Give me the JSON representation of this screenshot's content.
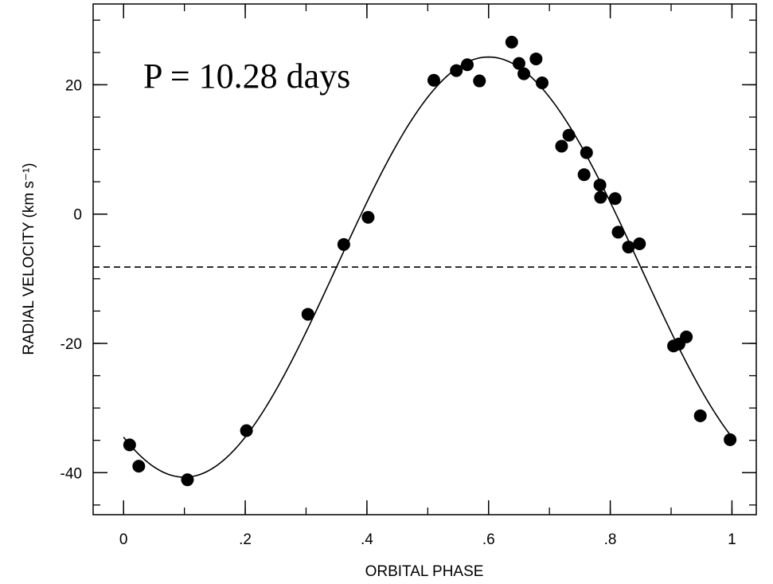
{
  "chart_data": {
    "type": "scatter",
    "xlabel": "ORBITAL PHASE",
    "ylabel": "RADIAL VELOCITY (km s⁻¹)",
    "annotation": "P = 10.28 days",
    "xlim": [
      -0.05,
      1.04
    ],
    "ylim": [
      -46.5,
      32.5
    ],
    "x_ticks": [
      0,
      0.2,
      0.4,
      0.6,
      0.8,
      1
    ],
    "x_tick_labels": [
      "0",
      ".2",
      ".4",
      ".6",
      ".8",
      "1"
    ],
    "y_ticks": [
      -40,
      -20,
      0,
      20
    ],
    "y_tick_labels": [
      "-40",
      "-20",
      "0",
      "20"
    ],
    "y_minor_step": 5,
    "x_minor_step": 0.1,
    "grid": false,
    "systemic_velocity": -8.2,
    "fit_curve": {
      "gamma": -8.2,
      "amplitude": 32.5,
      "phase_of_max": 0.6
    },
    "points": [
      {
        "x": 0.01,
        "y": -35.7
      },
      {
        "x": 0.025,
        "y": -39.0
      },
      {
        "x": 0.105,
        "y": -41.1
      },
      {
        "x": 0.202,
        "y": -33.5
      },
      {
        "x": 0.303,
        "y": -15.5
      },
      {
        "x": 0.362,
        "y": -4.7
      },
      {
        "x": 0.402,
        "y": -0.5
      },
      {
        "x": 0.51,
        "y": 20.7
      },
      {
        "x": 0.547,
        "y": 22.2
      },
      {
        "x": 0.565,
        "y": 23.1
      },
      {
        "x": 0.585,
        "y": 20.6
      },
      {
        "x": 0.638,
        "y": 26.6
      },
      {
        "x": 0.65,
        "y": 23.3
      },
      {
        "x": 0.658,
        "y": 21.7
      },
      {
        "x": 0.678,
        "y": 24.0
      },
      {
        "x": 0.688,
        "y": 20.3
      },
      {
        "x": 0.72,
        "y": 10.5
      },
      {
        "x": 0.732,
        "y": 12.2
      },
      {
        "x": 0.757,
        "y": 6.1
      },
      {
        "x": 0.761,
        "y": 9.5
      },
      {
        "x": 0.783,
        "y": 4.5
      },
      {
        "x": 0.784,
        "y": 2.6
      },
      {
        "x": 0.808,
        "y": 2.4
      },
      {
        "x": 0.813,
        "y": -2.8
      },
      {
        "x": 0.83,
        "y": -5.1
      },
      {
        "x": 0.848,
        "y": -4.6
      },
      {
        "x": 0.904,
        "y": -20.4
      },
      {
        "x": 0.913,
        "y": -20.1
      },
      {
        "x": 0.925,
        "y": -19.0
      },
      {
        "x": 0.948,
        "y": -31.2
      },
      {
        "x": 0.997,
        "y": -34.9
      }
    ]
  }
}
